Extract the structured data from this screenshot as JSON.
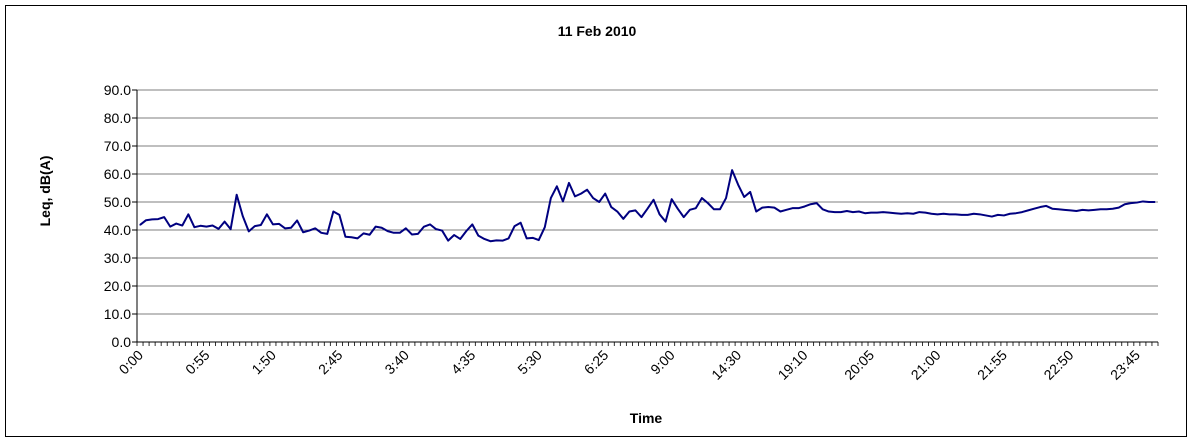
{
  "chart_data": {
    "type": "line",
    "title": "11 Feb 2010",
    "xlabel": "Time",
    "ylabel": "Leq, dB(A)",
    "ylim": [
      0,
      90
    ],
    "y_ticks": [
      "0.0",
      "10.0",
      "20.0",
      "30.0",
      "40.0",
      "50.0",
      "60.0",
      "70.0",
      "80.0",
      "90.0"
    ],
    "grid": "horizontal",
    "legend": "none",
    "line_color": "#000080",
    "x_tick_labels": [
      "0:00",
      "0:55",
      "1:50",
      "2:45",
      "3:40",
      "4:35",
      "5:30",
      "6:25",
      "9:00",
      "14:30",
      "19:10",
      "20:05",
      "21:00",
      "21:55",
      "22:50",
      "23:45"
    ],
    "x_label_step": 11,
    "series": [
      {
        "values": [
          41.8,
          43.5,
          43.8,
          43.9,
          44.6,
          41.2,
          42.3,
          41.6,
          45.6,
          41.0,
          41.5,
          41.2,
          41.6,
          40.4,
          43.0,
          40.3,
          52.6,
          45.0,
          39.5,
          41.4,
          41.8,
          45.6,
          42.0,
          42.2,
          40.6,
          40.8,
          43.4,
          39.2,
          39.8,
          40.6,
          39.0,
          38.6,
          46.6,
          45.4,
          37.6,
          37.4,
          37.0,
          38.8,
          38.3,
          41.2,
          40.8,
          39.6,
          39.0,
          39.0,
          40.6,
          38.4,
          38.6,
          41.2,
          42.0,
          40.3,
          39.8,
          36.2,
          38.2,
          36.8,
          39.6,
          42.0,
          38.0,
          36.8,
          36.0,
          36.3,
          36.2,
          37.0,
          41.4,
          42.6,
          37.0,
          37.2,
          36.4,
          41.0,
          51.4,
          55.6,
          50.2,
          56.8,
          52.0,
          53.0,
          54.4,
          51.4,
          50.0,
          53.0,
          48.2,
          46.6,
          44.0,
          46.6,
          47.0,
          44.6,
          47.6,
          50.8,
          45.6,
          43.0,
          51.0,
          47.6,
          44.6,
          47.2,
          47.8,
          51.4,
          49.6,
          47.4,
          47.4,
          51.4,
          61.4,
          56.2,
          51.8,
          53.6,
          46.6,
          48.0,
          48.2,
          48.0,
          46.6,
          47.2,
          47.8,
          47.8,
          48.4,
          49.2,
          49.6,
          47.4,
          46.6,
          46.4,
          46.4,
          46.8,
          46.4,
          46.6,
          46.0,
          46.2,
          46.2,
          46.4,
          46.2,
          46.0,
          45.8,
          46.0,
          45.8,
          46.4,
          46.2,
          45.8,
          45.6,
          45.8,
          45.6,
          45.6,
          45.4,
          45.4,
          45.8,
          45.6,
          45.2,
          44.8,
          45.4,
          45.2,
          45.8,
          46.0,
          46.4,
          47.0,
          47.6,
          48.2,
          48.6,
          47.6,
          47.4,
          47.2,
          47.0,
          46.8,
          47.2,
          47.0,
          47.2,
          47.4,
          47.4,
          47.6,
          48.0,
          49.2,
          49.6,
          49.8,
          50.2,
          50.0,
          50.0
        ]
      }
    ]
  }
}
